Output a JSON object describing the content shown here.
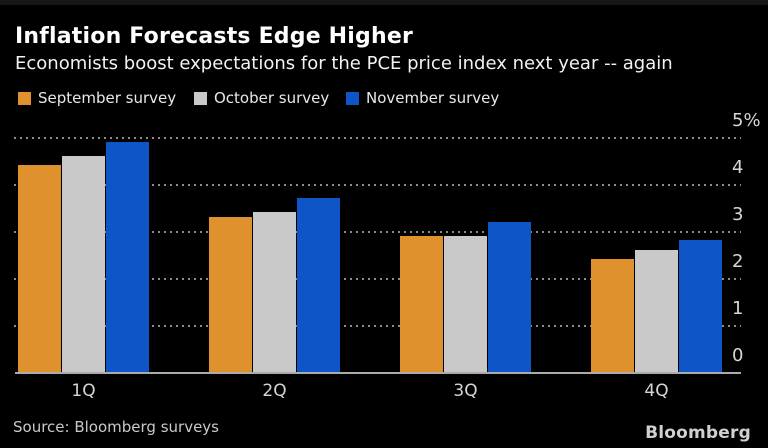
{
  "header": {
    "title": "Inflation Forecasts Edge Higher",
    "subtitle": "Economists boost expectations for the PCE price index next year -- again"
  },
  "legend": {
    "items": [
      {
        "label": "September survey",
        "color": "#de912d"
      },
      {
        "label": "October survey",
        "color": "#c9c9c9"
      },
      {
        "label": "November survey",
        "color": "#0e55c8"
      }
    ]
  },
  "chart_data": {
    "type": "bar",
    "categories": [
      "1Q",
      "2Q",
      "3Q",
      "4Q"
    ],
    "series": [
      {
        "name": "September survey",
        "color": "#de912d",
        "values": [
          4.4,
          3.3,
          2.9,
          2.4
        ]
      },
      {
        "name": "October survey",
        "color": "#c9c9c9",
        "values": [
          4.6,
          3.4,
          2.9,
          2.6
        ]
      },
      {
        "name": "November survey",
        "color": "#0e55c8",
        "values": [
          4.9,
          3.7,
          3.2,
          2.8
        ]
      }
    ],
    "title": "Inflation Forecasts Edge Higher",
    "subtitle": "Economists boost expectations for the PCE price index next year -- again",
    "xlabel": "",
    "ylabel": "%",
    "ylim": [
      0,
      5
    ],
    "yticks": [
      {
        "value": 5,
        "label": "5%"
      },
      {
        "value": 4,
        "label": "4"
      },
      {
        "value": 3,
        "label": "3"
      },
      {
        "value": 2,
        "label": "2"
      },
      {
        "value": 1,
        "label": "1"
      },
      {
        "value": 0,
        "label": "0"
      }
    ],
    "grid": "horizontal-dotted",
    "legend_position": "top"
  },
  "footer": {
    "source": "Source: Bloomberg surveys",
    "brand": "Bloomberg"
  }
}
